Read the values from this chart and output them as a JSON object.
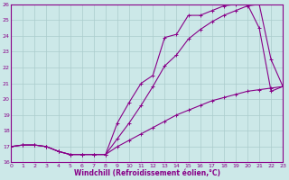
{
  "xlabel": "Windchill (Refroidissement éolien,°C)",
  "bg_color": "#cce8e8",
  "grid_color": "#aacccc",
  "line_color": "#880088",
  "xlim": [
    0,
    23
  ],
  "ylim": [
    16,
    26
  ],
  "xticks": [
    0,
    1,
    2,
    3,
    4,
    5,
    6,
    7,
    8,
    9,
    10,
    11,
    12,
    13,
    14,
    15,
    16,
    17,
    18,
    19,
    20,
    21,
    22,
    23
  ],
  "yticks": [
    16,
    17,
    18,
    19,
    20,
    21,
    22,
    23,
    24,
    25,
    26
  ],
  "line1_x": [
    0,
    1,
    2,
    3,
    4,
    5,
    6,
    7,
    8,
    9,
    10,
    11,
    12,
    13,
    14,
    15,
    16,
    17,
    18,
    19,
    20,
    21,
    22,
    23
  ],
  "line1_y": [
    17,
    17.1,
    17.1,
    17,
    16.7,
    16.5,
    16.5,
    16.5,
    16.5,
    18.5,
    19.8,
    21.0,
    21.5,
    23.9,
    24.1,
    25.3,
    25.3,
    25.6,
    25.9,
    26.0,
    26.0,
    24.5,
    20.5,
    20.8
  ],
  "line2_x": [
    0,
    1,
    2,
    3,
    4,
    5,
    6,
    7,
    8,
    9,
    10,
    11,
    12,
    13,
    14,
    15,
    16,
    17,
    18,
    19,
    20,
    21,
    22,
    23
  ],
  "line2_y": [
    17,
    17.1,
    17.1,
    17,
    16.7,
    16.5,
    16.5,
    16.5,
    16.5,
    17.5,
    18.5,
    19.6,
    20.8,
    22.1,
    22.8,
    23.8,
    24.4,
    24.9,
    25.3,
    25.6,
    25.9,
    26.0,
    22.5,
    20.8
  ],
  "line3_x": [
    0,
    1,
    2,
    3,
    4,
    5,
    6,
    7,
    8,
    9,
    10,
    11,
    12,
    13,
    14,
    15,
    16,
    17,
    18,
    19,
    20,
    21,
    22,
    23
  ],
  "line3_y": [
    17,
    17.1,
    17.1,
    17,
    16.7,
    16.5,
    16.5,
    16.5,
    16.5,
    17.0,
    17.4,
    17.8,
    18.2,
    18.6,
    19.0,
    19.3,
    19.6,
    19.9,
    20.1,
    20.3,
    20.5,
    20.6,
    20.7,
    20.8
  ]
}
